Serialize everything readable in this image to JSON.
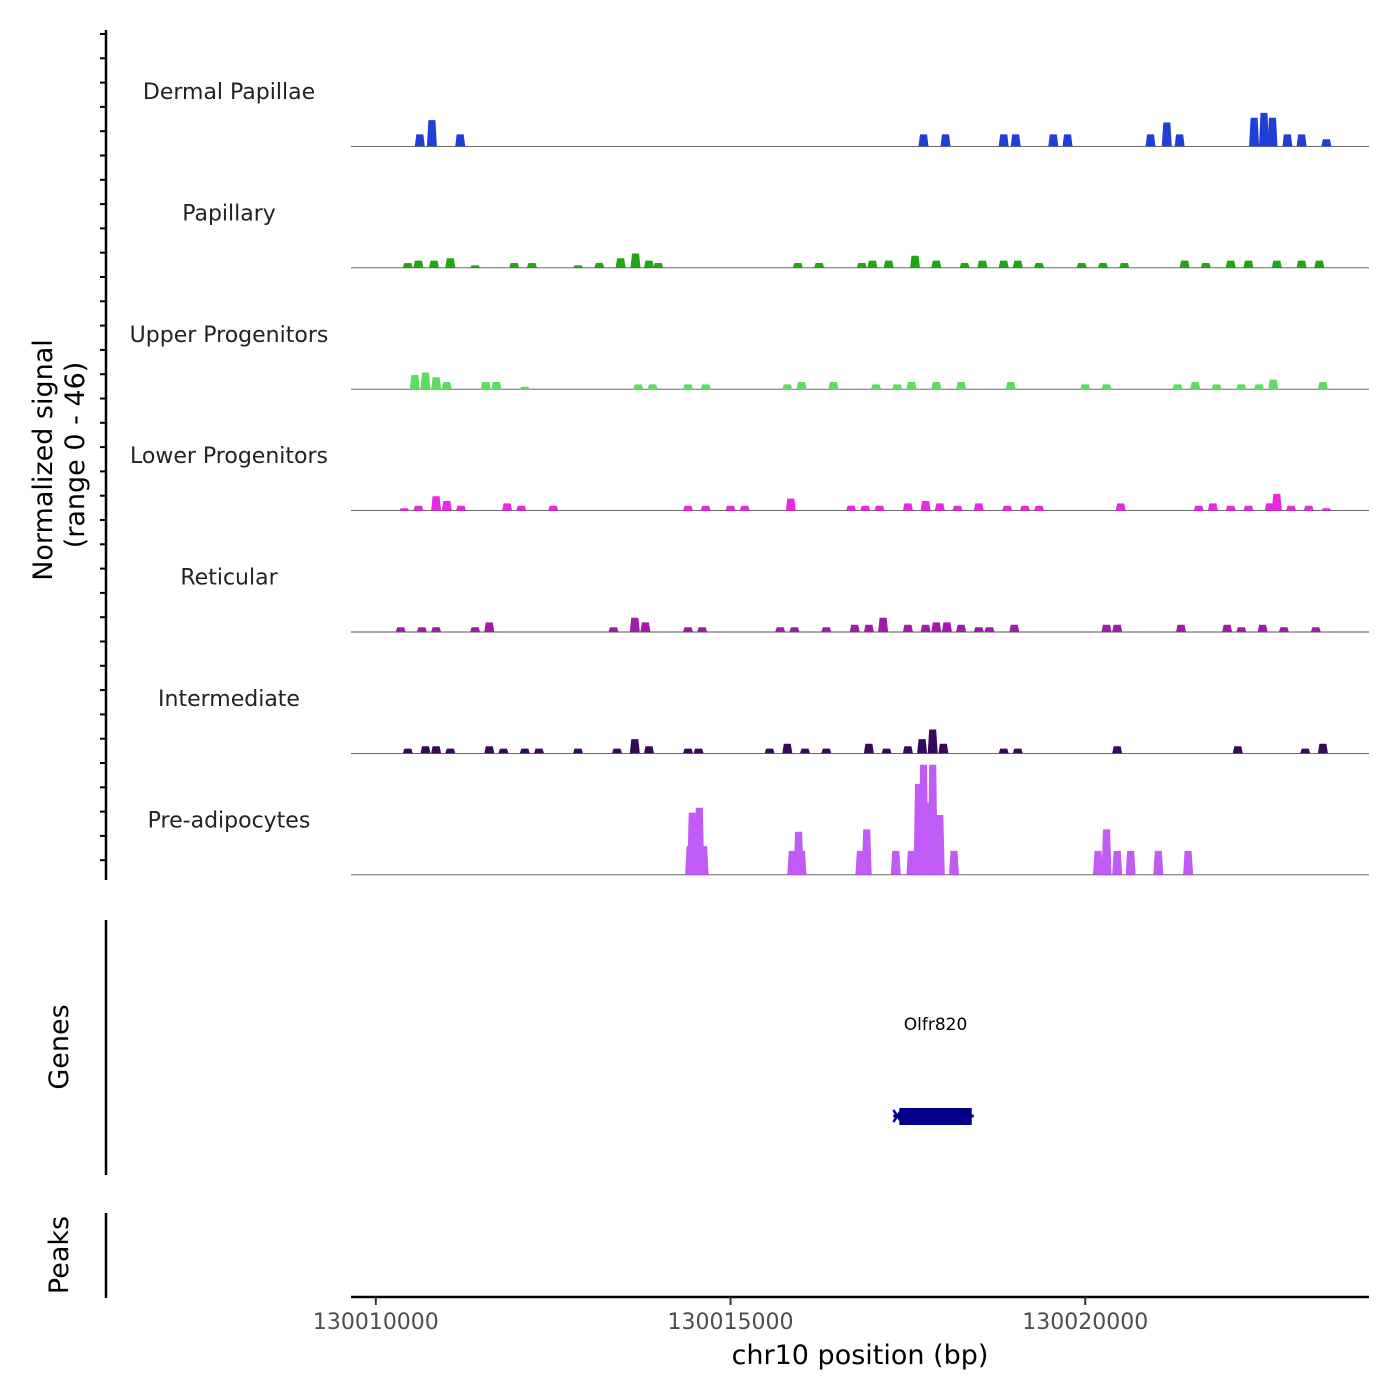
{
  "chart_data": {
    "type": "area",
    "xlabel": "chr10 position (bp)",
    "ylabel": "Normalized signal",
    "ylabel_range": "(range 0 - 46)",
    "signal_range": [
      0,
      46
    ],
    "xlim": [
      130009650,
      130024000
    ],
    "x_ticks": [
      130010000,
      130015000,
      130020000
    ],
    "x_tick_labels": [
      "130010000",
      "130015000",
      "130020000"
    ],
    "tracks": [
      {
        "name": "Dermal Papillae",
        "color": "#1f3fd6",
        "peaks": [
          [
            130010620,
            5
          ],
          [
            130010790,
            11
          ],
          [
            130011190,
            5
          ],
          [
            130017720,
            5
          ],
          [
            130018030,
            5
          ],
          [
            130018850,
            5
          ],
          [
            130019020,
            5
          ],
          [
            130019550,
            5
          ],
          [
            130019750,
            5
          ],
          [
            130020920,
            5
          ],
          [
            130021150,
            10
          ],
          [
            130021330,
            5
          ],
          [
            130022380,
            12
          ],
          [
            130022520,
            14
          ],
          [
            130022640,
            12
          ],
          [
            130022850,
            5
          ],
          [
            130023050,
            5
          ],
          [
            130023400,
            3
          ]
        ]
      },
      {
        "name": "Papillary",
        "color": "#22a514",
        "peaks": [
          [
            130010450,
            2
          ],
          [
            130010600,
            3
          ],
          [
            130010820,
            3
          ],
          [
            130011050,
            4
          ],
          [
            130011400,
            1
          ],
          [
            130011950,
            2
          ],
          [
            130012200,
            2
          ],
          [
            130012850,
            1
          ],
          [
            130013150,
            2
          ],
          [
            130013450,
            4
          ],
          [
            130013660,
            6
          ],
          [
            130013850,
            3
          ],
          [
            130013980,
            2
          ],
          [
            130015950,
            2
          ],
          [
            130016250,
            2
          ],
          [
            130016850,
            2
          ],
          [
            130017000,
            3
          ],
          [
            130017230,
            3
          ],
          [
            130017600,
            5
          ],
          [
            130017900,
            3
          ],
          [
            130018300,
            2
          ],
          [
            130018550,
            3
          ],
          [
            130018850,
            3
          ],
          [
            130019050,
            3
          ],
          [
            130019350,
            2
          ],
          [
            130019950,
            2
          ],
          [
            130020250,
            2
          ],
          [
            130020550,
            2
          ],
          [
            130021400,
            3
          ],
          [
            130021700,
            2
          ],
          [
            130022050,
            3
          ],
          [
            130022300,
            3
          ],
          [
            130022700,
            3
          ],
          [
            130023050,
            3
          ],
          [
            130023300,
            3
          ]
        ]
      },
      {
        "name": "Upper Progenitors",
        "color": "#5edc62",
        "peaks": [
          [
            130010550,
            6
          ],
          [
            130010700,
            7
          ],
          [
            130010850,
            5
          ],
          [
            130011000,
            3
          ],
          [
            130011550,
            3
          ],
          [
            130011700,
            3
          ],
          [
            130012100,
            1
          ],
          [
            130013700,
            2
          ],
          [
            130013900,
            2
          ],
          [
            130014400,
            2
          ],
          [
            130014650,
            2
          ],
          [
            130015800,
            2
          ],
          [
            130016000,
            3
          ],
          [
            130016450,
            3
          ],
          [
            130017050,
            2
          ],
          [
            130017350,
            2
          ],
          [
            130017550,
            3
          ],
          [
            130017900,
            3
          ],
          [
            130018250,
            3
          ],
          [
            130018950,
            3
          ],
          [
            130020000,
            2
          ],
          [
            130020300,
            2
          ],
          [
            130021300,
            2
          ],
          [
            130021550,
            3
          ],
          [
            130021850,
            2
          ],
          [
            130022200,
            2
          ],
          [
            130022450,
            2
          ],
          [
            130022650,
            4
          ],
          [
            130023350,
            3
          ]
        ]
      },
      {
        "name": "Lower Progenitors",
        "color": "#ea28e3",
        "peaks": [
          [
            130010400,
            1
          ],
          [
            130010600,
            2
          ],
          [
            130010850,
            6
          ],
          [
            130011000,
            4
          ],
          [
            130011200,
            2
          ],
          [
            130011850,
            3
          ],
          [
            130012050,
            2
          ],
          [
            130012500,
            2
          ],
          [
            130014400,
            2
          ],
          [
            130014650,
            2
          ],
          [
            130015000,
            2
          ],
          [
            130015200,
            2
          ],
          [
            130015850,
            5
          ],
          [
            130016700,
            2
          ],
          [
            130016900,
            2
          ],
          [
            130017100,
            2
          ],
          [
            130017500,
            3
          ],
          [
            130017750,
            4
          ],
          [
            130017950,
            3
          ],
          [
            130018200,
            2
          ],
          [
            130018500,
            3
          ],
          [
            130018900,
            2
          ],
          [
            130019150,
            2
          ],
          [
            130019350,
            2
          ],
          [
            130020500,
            3
          ],
          [
            130021600,
            2
          ],
          [
            130021800,
            3
          ],
          [
            130022050,
            2
          ],
          [
            130022300,
            2
          ],
          [
            130022600,
            3
          ],
          [
            130022700,
            7
          ],
          [
            130022900,
            2
          ],
          [
            130023150,
            2
          ],
          [
            130023400,
            1
          ]
        ]
      },
      {
        "name": "Reticular",
        "color": "#a11aaa",
        "peaks": [
          [
            130010350,
            2
          ],
          [
            130010650,
            2
          ],
          [
            130010850,
            2
          ],
          [
            130011400,
            2
          ],
          [
            130011600,
            4
          ],
          [
            130013350,
            2
          ],
          [
            130013650,
            6
          ],
          [
            130013800,
            4
          ],
          [
            130014400,
            2
          ],
          [
            130014600,
            2
          ],
          [
            130015700,
            2
          ],
          [
            130015900,
            2
          ],
          [
            130016350,
            2
          ],
          [
            130016750,
            3
          ],
          [
            130016950,
            3
          ],
          [
            130017150,
            6
          ],
          [
            130017500,
            3
          ],
          [
            130017750,
            3
          ],
          [
            130017900,
            4
          ],
          [
            130018050,
            4
          ],
          [
            130018250,
            3
          ],
          [
            130018500,
            2
          ],
          [
            130018650,
            2
          ],
          [
            130019000,
            3
          ],
          [
            130020300,
            3
          ],
          [
            130020450,
            3
          ],
          [
            130021350,
            3
          ],
          [
            130022000,
            3
          ],
          [
            130022200,
            2
          ],
          [
            130022500,
            3
          ],
          [
            130022800,
            2
          ],
          [
            130023250,
            2
          ]
        ]
      },
      {
        "name": "Intermediate",
        "color": "#360a58",
        "peaks": [
          [
            130010450,
            2
          ],
          [
            130010700,
            3
          ],
          [
            130010850,
            3
          ],
          [
            130011050,
            2
          ],
          [
            130011600,
            3
          ],
          [
            130011800,
            2
          ],
          [
            130012100,
            2
          ],
          [
            130012300,
            2
          ],
          [
            130012850,
            2
          ],
          [
            130013400,
            2
          ],
          [
            130013650,
            6
          ],
          [
            130013850,
            3
          ],
          [
            130014400,
            2
          ],
          [
            130014550,
            2
          ],
          [
            130015550,
            2
          ],
          [
            130015800,
            4
          ],
          [
            130016050,
            2
          ],
          [
            130016350,
            2
          ],
          [
            130016950,
            4
          ],
          [
            130017200,
            2
          ],
          [
            130017500,
            3
          ],
          [
            130017700,
            6
          ],
          [
            130017850,
            10
          ],
          [
            130018000,
            4
          ],
          [
            130018850,
            2
          ],
          [
            130019050,
            2
          ],
          [
            130020450,
            3
          ],
          [
            130022150,
            3
          ],
          [
            130023100,
            2
          ],
          [
            130023350,
            4
          ]
        ]
      },
      {
        "name": "Pre-adipocytes",
        "color": "#c05bf5",
        "peaks": [
          [
            130014430,
            12
          ],
          [
            130014460,
            26
          ],
          [
            130014560,
            28
          ],
          [
            130014620,
            12
          ],
          [
            130015870,
            10
          ],
          [
            130015960,
            18
          ],
          [
            130016000,
            10
          ],
          [
            130016830,
            10
          ],
          [
            130016920,
            19
          ],
          [
            130017330,
            10
          ],
          [
            130017550,
            10
          ],
          [
            130017650,
            38
          ],
          [
            130017720,
            46
          ],
          [
            130017780,
            30
          ],
          [
            130017850,
            46
          ],
          [
            130017950,
            25
          ],
          [
            130018150,
            10
          ],
          [
            130020180,
            10
          ],
          [
            130020300,
            19
          ],
          [
            130020450,
            10
          ],
          [
            130020640,
            10
          ],
          [
            130021030,
            10
          ],
          [
            130021450,
            10
          ]
        ]
      }
    ],
    "genes": [
      {
        "name": "Olfr820",
        "start": 130017380,
        "end": 130018400,
        "strand": "-",
        "color": "#00008b"
      }
    ],
    "panel_labels": {
      "genes": "Genes",
      "peaks": "Peaks"
    },
    "peaks_track": []
  }
}
